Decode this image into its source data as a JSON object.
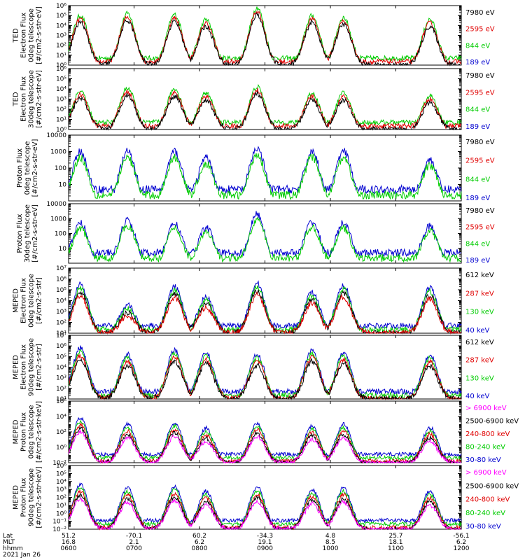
{
  "chart_data": [
    {
      "type": "line",
      "ylabel": [
        "TED",
        "Electron Flux",
        "0deg telescope",
        "[#/cm2-s-str-eV]"
      ],
      "yscale": "log",
      "ylim": [
        1,
        1000000
      ],
      "yticks": [
        "10^0",
        "10^1",
        "10^2",
        "10^3",
        "10^4",
        "10^5",
        "10^6"
      ],
      "legend": [
        {
          "label": "7980 eV",
          "color": "#000000"
        },
        {
          "label": "2595 eV",
          "color": "#e00000"
        },
        {
          "label": "844 eV",
          "color": "#00cc00"
        },
        {
          "label": "189 eV",
          "color": "#0000d0"
        }
      ],
      "trace_order": [
        "#00cc00",
        "#e00000",
        "#000000"
      ],
      "shape": "ted",
      "bursts": [
        0.03,
        0.15,
        0.27,
        0.35,
        0.48,
        0.62,
        0.7,
        0.92
      ],
      "burst_peaks": [
        5.0,
        5.2,
        5.1,
        4.6,
        5.8,
        5.0,
        4.8,
        4.6
      ]
    },
    {
      "type": "line",
      "ylabel": [
        "TED",
        "Electron Flux",
        "30deg telescope",
        "[#/cm2-s-str-eV]"
      ],
      "yscale": "log",
      "ylim": [
        1,
        1000000
      ],
      "yticks": [
        "10^0",
        "10^1",
        "10^2",
        "10^3",
        "10^4",
        "10^5",
        "10^6"
      ],
      "legend": [
        {
          "label": "7980 eV",
          "color": "#000000"
        },
        {
          "label": "2595 eV",
          "color": "#e00000"
        },
        {
          "label": "844 eV",
          "color": "#00cc00"
        },
        {
          "label": "189 eV",
          "color": "#0000d0"
        }
      ],
      "trace_order": [
        "#00cc00",
        "#e00000",
        "#000000"
      ],
      "shape": "ted",
      "bursts": [
        0.03,
        0.15,
        0.27,
        0.35,
        0.48,
        0.62,
        0.7,
        0.92
      ],
      "burst_peaks": [
        3.8,
        4.1,
        4.0,
        3.6,
        4.2,
        3.6,
        3.6,
        3.3
      ]
    },
    {
      "type": "line",
      "ylabel": [
        "Proton Flux",
        "0deg telescope",
        "[#/cm2-s-str-eV]"
      ],
      "yscale": "log",
      "ylim": [
        1,
        10000
      ],
      "ytick_values": [
        10,
        100,
        1000,
        10000
      ],
      "ytick_labels": [
        "10",
        "100",
        "1000",
        "10000"
      ],
      "legend": [
        {
          "label": "7980 eV",
          "color": "#000000"
        },
        {
          "label": "2595 eV",
          "color": "#e00000"
        },
        {
          "label": "844 eV",
          "color": "#00cc00"
        },
        {
          "label": "189 eV",
          "color": "#0000d0"
        }
      ],
      "trace_order": [
        "#0000d0",
        "#00cc00"
      ],
      "shape": "proton",
      "bursts": [
        0.03,
        0.15,
        0.27,
        0.35,
        0.48,
        0.62,
        0.7,
        0.92
      ],
      "burst_peaks": [
        3.0,
        3.0,
        3.0,
        2.6,
        3.2,
        3.0,
        3.0,
        2.5
      ]
    },
    {
      "type": "line",
      "ylabel": [
        "Proton Flux",
        "30deg telescope",
        "[#/cm2-s-str-eV]"
      ],
      "yscale": "log",
      "ylim": [
        1,
        10000
      ],
      "ytick_values": [
        10,
        100,
        1000,
        10000
      ],
      "ytick_labels": [
        "10",
        "100",
        "1000",
        "10000"
      ],
      "legend": [
        {
          "label": "7980 eV",
          "color": "#000000"
        },
        {
          "label": "2595 eV",
          "color": "#e00000"
        },
        {
          "label": "844 eV",
          "color": "#00cc00"
        },
        {
          "label": "189 eV",
          "color": "#0000d0"
        }
      ],
      "trace_order": [
        "#0000d0",
        "#00cc00"
      ],
      "shape": "proton",
      "bursts": [
        0.03,
        0.15,
        0.27,
        0.35,
        0.48,
        0.62,
        0.7,
        0.92
      ],
      "burst_peaks": [
        2.7,
        2.9,
        2.7,
        2.4,
        3.3,
        2.8,
        2.7,
        2.5
      ]
    },
    {
      "type": "line",
      "ylabel": [
        "MEPED",
        "Electron Flux",
        "0deg telescope",
        "[#/cm2-s-str]"
      ],
      "yscale": "log",
      "ylim": [
        10,
        10000000
      ],
      "yticks": [
        "10^1",
        "10^2",
        "10^3",
        "10^4",
        "10^5",
        "10^6",
        "10^7"
      ],
      "legend": [
        {
          "label": "612 keV",
          "color": "#000000"
        },
        {
          "label": "287 keV",
          "color": "#e00000"
        },
        {
          "label": "130 keV",
          "color": "#00cc00"
        },
        {
          "label": "40 keV",
          "color": "#0000d0"
        }
      ],
      "trace_order": [
        "#0000d0",
        "#00cc00",
        "#000000",
        "#e00000"
      ],
      "shape": "meped_e",
      "bursts": [
        0.03,
        0.15,
        0.27,
        0.35,
        0.48,
        0.62,
        0.7,
        0.92
      ],
      "burst_peaks": [
        5.5,
        3.6,
        5.3,
        4.4,
        5.6,
        4.8,
        5.4,
        5.2
      ]
    },
    {
      "type": "line",
      "ylabel": [
        "MEPED",
        "Electron Flux",
        "90deg telescope",
        "[#/cm2-s-str]"
      ],
      "yscale": "log",
      "ylim": [
        10,
        10000000
      ],
      "yticks": [
        "10^1",
        "10^2",
        "10^3",
        "10^4",
        "10^5",
        "10^6",
        "10^7"
      ],
      "legend": [
        {
          "label": "612 keV",
          "color": "#000000"
        },
        {
          "label": "287 keV",
          "color": "#e00000"
        },
        {
          "label": "130 keV",
          "color": "#00cc00"
        },
        {
          "label": "40 keV",
          "color": "#0000d0"
        }
      ],
      "trace_order": [
        "#0000d0",
        "#00cc00",
        "#e00000",
        "#000000"
      ],
      "shape": "meped_e",
      "bursts": [
        0.03,
        0.15,
        0.27,
        0.35,
        0.48,
        0.62,
        0.7,
        0.92
      ],
      "burst_peaks": [
        5.8,
        5.2,
        5.6,
        5.4,
        5.2,
        5.6,
        5.4,
        5.2
      ]
    },
    {
      "type": "line",
      "ylabel": [
        "MEPED",
        "Proton Flux",
        "0deg telescope",
        "[#/cm2-s-str-keV]"
      ],
      "yscale": "log",
      "ylim": [
        0.01,
        1000000
      ],
      "yticks": [
        "10^-2",
        "10^0",
        "10^2",
        "10^4",
        "10^6"
      ],
      "legend": [
        {
          "label": "> 6900 keV",
          "color": "#ff00ff"
        },
        {
          "label": "2500-6900 keV",
          "color": "#000000"
        },
        {
          "label": "240-800 keV",
          "color": "#e00000"
        },
        {
          "label": "80-240 keV",
          "color": "#00cc00"
        },
        {
          "label": "30-80 keV",
          "color": "#0000d0"
        }
      ],
      "trace_order": [
        "#0000d0",
        "#00cc00",
        "#e00000",
        "#000000",
        "#ff00ff"
      ],
      "shape": "meped_p",
      "bursts": [
        0.03,
        0.15,
        0.27,
        0.35,
        0.48,
        0.62,
        0.7,
        0.92
      ],
      "burst_peaks": [
        3.8,
        3.0,
        3.2,
        2.5,
        3.2,
        2.8,
        3.0,
        2.6
      ]
    },
    {
      "type": "line",
      "ylabel": [
        "MEPED",
        "Proton Flux",
        "90deg telescope",
        "[#/cm2-s-str-keV]"
      ],
      "yscale": "log",
      "ylim": [
        0.01,
        1000000
      ],
      "yticks": [
        "10^-2",
        "10^-1",
        "10^0",
        "10^1",
        "10^2",
        "10^3",
        "10^4",
        "10^5",
        "10^6"
      ],
      "legend": [
        {
          "label": "> 6900 keV",
          "color": "#ff00ff"
        },
        {
          "label": "2500-6900 keV",
          "color": "#000000"
        },
        {
          "label": "240-800 keV",
          "color": "#e00000"
        },
        {
          "label": "80-240 keV",
          "color": "#00cc00"
        },
        {
          "label": "30-80 keV",
          "color": "#0000d0"
        }
      ],
      "trace_order": [
        "#0000d0",
        "#00cc00",
        "#e00000",
        "#000000",
        "#ff00ff"
      ],
      "shape": "meped_p",
      "bursts": [
        0.03,
        0.15,
        0.27,
        0.35,
        0.48,
        0.62,
        0.7,
        0.92
      ],
      "burst_peaks": [
        3.6,
        3.2,
        3.4,
        2.8,
        3.3,
        3.0,
        3.2,
        2.8
      ]
    }
  ],
  "x_axis": {
    "row_labels": [
      "Lat",
      "MLT",
      "hhmm"
    ],
    "ticks": [
      {
        "lat": "51.2",
        "mlt": "16.8",
        "hhmm": "0600"
      },
      {
        "lat": "-70.1",
        "mlt": "2.1",
        "hhmm": "0700"
      },
      {
        "lat": "60.2",
        "mlt": "6.2",
        "hhmm": "0800"
      },
      {
        "lat": "-34.3",
        "mlt": "19.1",
        "hhmm": "0900"
      },
      {
        "lat": "4.8",
        "mlt": "8.5",
        "hhmm": "1000"
      },
      {
        "lat": "25.7",
        "mlt": "18.1",
        "hhmm": "1100"
      },
      {
        "lat": "-56.1",
        "mlt": "6.2",
        "hhmm": "1200"
      }
    ],
    "date": "2021 Jan 26"
  }
}
